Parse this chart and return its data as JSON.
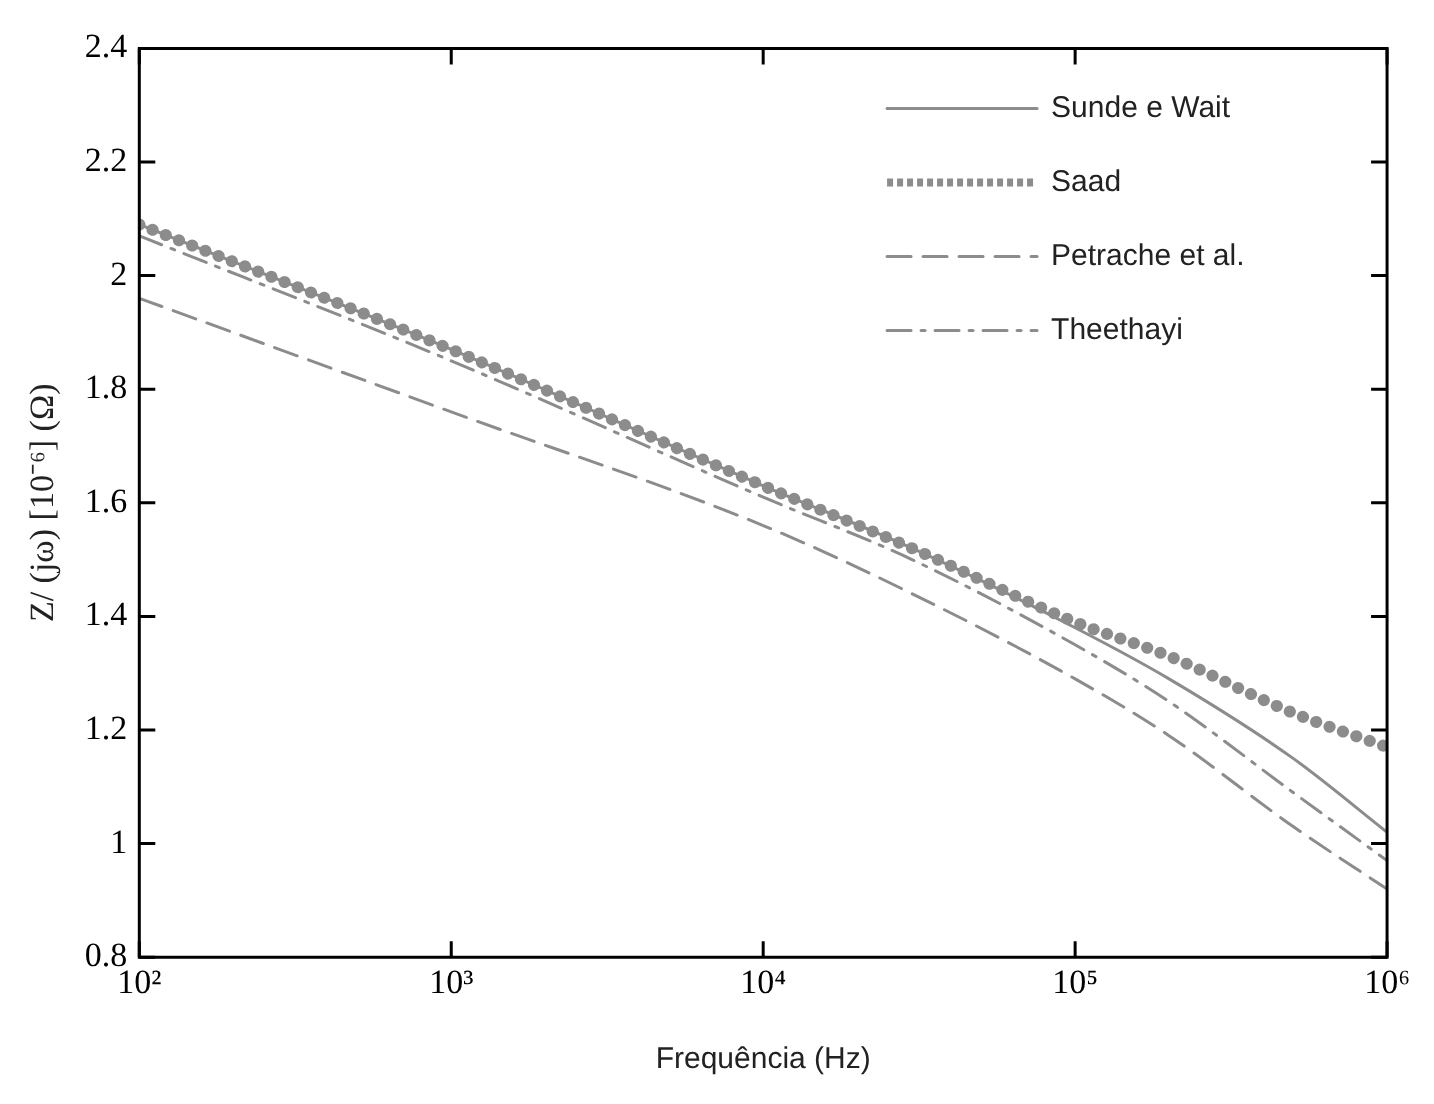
{
  "chart_data": {
    "type": "line",
    "xlabel": "Frequência (Hz)",
    "ylabel": "Z/ (jω) [10⁻⁶] (Ω)",
    "x": [
      100,
      1000,
      10000,
      30000,
      100000,
      200000,
      500000,
      1000000
    ],
    "series": [
      {
        "name": "Sunde e Wait",
        "color": "#8c8c8c",
        "line_style": "solid",
        "values": [
          2.09,
          1.87,
          1.63,
          1.52,
          1.38,
          1.29,
          1.15,
          1.02
        ]
      },
      {
        "name": "Saad",
        "color": "#8c8c8c",
        "line_style": "dotted",
        "values": [
          2.09,
          1.87,
          1.63,
          1.52,
          1.39,
          1.33,
          1.23,
          1.17
        ]
      },
      {
        "name": "Petrache et al.",
        "color": "#8c8c8c",
        "line_style": "dashed",
        "values": [
          1.96,
          1.76,
          1.56,
          1.44,
          1.29,
          1.19,
          1.03,
          0.92
        ]
      },
      {
        "name": "Theethayi",
        "color": "#8c8c8c",
        "line_style": "dashdot",
        "values": [
          2.07,
          1.85,
          1.61,
          1.5,
          1.35,
          1.25,
          1.09,
          0.97
        ]
      }
    ],
    "log": "x",
    "xlim": [
      100,
      1000000
    ],
    "xticks": [
      {
        "value": 100,
        "label": "10²"
      },
      {
        "value": 1000,
        "label": "10³"
      },
      {
        "value": 10000,
        "label": "10⁴"
      },
      {
        "value": 100000,
        "label": "10⁵"
      },
      {
        "value": 1000000,
        "label": "10⁶"
      }
    ],
    "ylim": [
      0.8,
      2.4
    ],
    "yticks": [
      0.8,
      1,
      1.2,
      1.4,
      1.6,
      1.8,
      2,
      2.2,
      2.4
    ],
    "grid": false,
    "legend": "top right"
  }
}
